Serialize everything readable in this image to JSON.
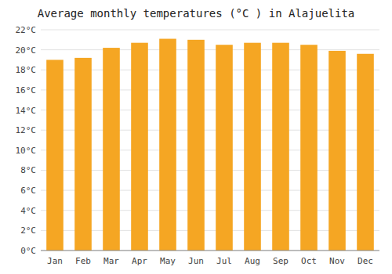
{
  "chart_data": {
    "type": "bar",
    "title": "Average monthly temperatures (°C ) in Alajuelita",
    "categories": [
      "Jan",
      "Feb",
      "Mar",
      "Apr",
      "May",
      "Jun",
      "Jul",
      "Aug",
      "Sep",
      "Oct",
      "Nov",
      "Dec"
    ],
    "values": [
      19.0,
      19.2,
      20.2,
      20.7,
      21.1,
      21.0,
      20.5,
      20.7,
      20.7,
      20.5,
      19.9,
      19.6
    ],
    "color": "#F5A623",
    "ylim": [
      0,
      22
    ],
    "yticks": [
      {
        "value": 0,
        "label": "0°C"
      },
      {
        "value": 2,
        "label": "2°C"
      },
      {
        "value": 4,
        "label": "4°C"
      },
      {
        "value": 6,
        "label": "6°C"
      },
      {
        "value": 8,
        "label": "8°C"
      },
      {
        "value": 10,
        "label": "10°C"
      },
      {
        "value": 12,
        "label": "12°C"
      },
      {
        "value": 14,
        "label": "14°C"
      },
      {
        "value": 16,
        "label": "16°C"
      },
      {
        "value": 18,
        "label": "18°C"
      },
      {
        "value": 20,
        "label": "20°C"
      },
      {
        "value": 22,
        "label": "22°C"
      }
    ],
    "grid": true
  }
}
